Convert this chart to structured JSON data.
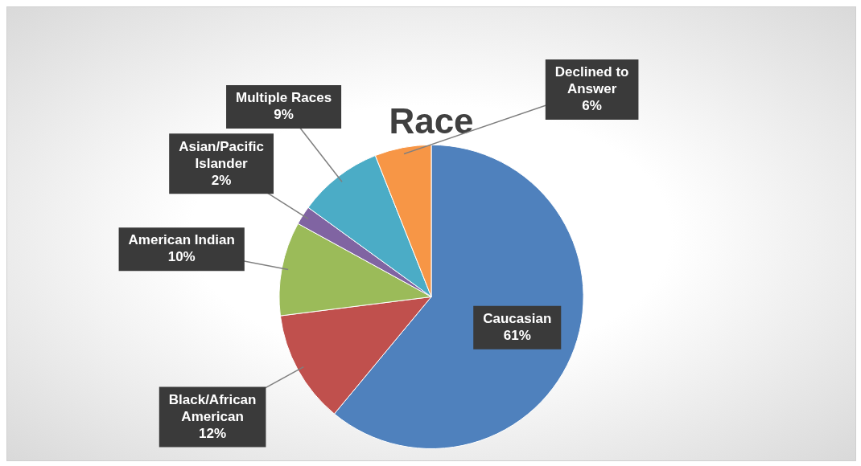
{
  "chart_data": {
    "type": "pie",
    "title": "Race",
    "categories": [
      "Caucasian",
      "Black/African American",
      "American Indian",
      "Asian/Pacific Islander",
      "Multiple Races",
      "Declined to Answer"
    ],
    "values": [
      61,
      12,
      10,
      2,
      9,
      6
    ],
    "colors": [
      "#4f81bd",
      "#c0504d",
      "#9bbb59",
      "#8064a2",
      "#4bacc6",
      "#f79646"
    ],
    "value_labels": [
      "61%",
      "12%",
      "10%",
      "2%",
      "9%",
      "6%"
    ],
    "legend": false
  }
}
